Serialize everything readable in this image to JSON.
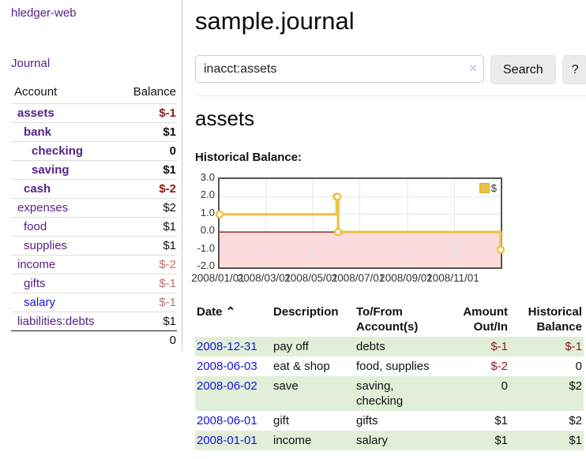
{
  "app": {
    "title": "hledger-web"
  },
  "nav": {
    "journal_label": "Journal"
  },
  "sidebar": {
    "headers": {
      "account": "Account",
      "balance": "Balance"
    },
    "accounts": [
      {
        "name": "assets",
        "level": 1,
        "balance": "$-1",
        "bold": true,
        "neg": "strong",
        "link": "visited"
      },
      {
        "name": "bank",
        "level": 2,
        "balance": "$1",
        "bold": true,
        "neg": "none",
        "link": "visited"
      },
      {
        "name": "checking",
        "level": 3,
        "balance": "0",
        "bold": true,
        "neg": "none",
        "link": "visited"
      },
      {
        "name": "saving",
        "level": 3,
        "balance": "$1",
        "bold": true,
        "neg": "none",
        "link": "visited"
      },
      {
        "name": "cash",
        "level": 2,
        "balance": "$-2",
        "bold": true,
        "neg": "strong",
        "link": "visited"
      },
      {
        "name": "expenses",
        "level": 1,
        "balance": "$2",
        "bold": false,
        "neg": "none",
        "link": "visited"
      },
      {
        "name": "food",
        "level": 2,
        "balance": "$1",
        "bold": false,
        "neg": "none",
        "link": "visited"
      },
      {
        "name": "supplies",
        "level": 2,
        "balance": "$1",
        "bold": false,
        "neg": "none",
        "link": "visited"
      },
      {
        "name": "income",
        "level": 1,
        "balance": "$-2",
        "bold": false,
        "neg": "weak",
        "link": "visited"
      },
      {
        "name": "gifts",
        "level": 2,
        "balance": "$-1",
        "bold": false,
        "neg": "weak",
        "link": "visited"
      },
      {
        "name": "salary",
        "level": 2,
        "balance": "$-1",
        "bold": false,
        "neg": "weak",
        "link": "unvisited"
      },
      {
        "name": "liabilities:debts",
        "level": 1,
        "balance": "$1",
        "bold": false,
        "neg": "none",
        "link": "visited"
      }
    ],
    "total": "0"
  },
  "main": {
    "title": "sample.journal",
    "search": {
      "value": "inacct:assets",
      "clear_icon": "×",
      "search_button": "Search",
      "help_button": "?"
    },
    "account_heading": "assets",
    "chart_label": "Historical Balance:"
  },
  "chart_data": {
    "type": "line",
    "step": true,
    "title": "Historical Balance",
    "series": [
      {
        "name": "$",
        "color": "#edc240",
        "dates": [
          "2008-01-01",
          "2008-06-01",
          "2008-06-02",
          "2008-06-03",
          "2008-12-31"
        ],
        "x_days": [
          0,
          152,
          153,
          154,
          365
        ],
        "values": [
          1,
          2,
          2,
          0,
          -1
        ]
      }
    ],
    "xlim_days": [
      0,
      365
    ],
    "ylim": [
      -2,
      3
    ],
    "yticks": [
      "3.0",
      "2.0",
      "1.0",
      "0.0",
      "-1.0",
      "-2.0"
    ],
    "xticks": [
      {
        "label": "2008/01/01",
        "day": 0
      },
      {
        "label": "2008/03/01",
        "day": 60
      },
      {
        "label": "2008/05/01",
        "day": 121
      },
      {
        "label": "2008/07/01",
        "day": 182
      },
      {
        "label": "2008/09/01",
        "day": 244
      },
      {
        "label": "2008/11/01",
        "day": 305
      }
    ],
    "legend": "$",
    "legend_position": "top-right",
    "grid": true,
    "grid_color": "#e6e6e6",
    "zero_line_color": "#8b1a1a",
    "negative_fill": "#fbdbdb",
    "marker": {
      "fill": "#ffffff",
      "radius": 4
    }
  },
  "register": {
    "headers": [
      {
        "label": "Date",
        "sort_indicator": "⌃",
        "align": "left"
      },
      {
        "label": "Description",
        "align": "left"
      },
      {
        "label": "To/From Account(s)",
        "align": "left"
      },
      {
        "label": "Amount Out/In",
        "align": "right"
      },
      {
        "label": "Historical Balance",
        "align": "right"
      }
    ],
    "rows": [
      {
        "date": "2008-12-31",
        "description": "pay off",
        "accounts": "debts",
        "amount": "$-1",
        "amount_neg": true,
        "balance": "$-1",
        "balance_neg": true,
        "green": true
      },
      {
        "date": "2008-06-03",
        "description": "eat & shop",
        "accounts": "food, supplies",
        "amount": "$-2",
        "amount_neg": true,
        "balance": "0",
        "balance_neg": false,
        "green": false
      },
      {
        "date": "2008-06-02",
        "description": "save",
        "accounts": "saving, checking",
        "amount": "0",
        "amount_neg": false,
        "balance": "$2",
        "balance_neg": false,
        "green": true
      },
      {
        "date": "2008-06-01",
        "description": "gift",
        "accounts": "gifts",
        "amount": "$1",
        "amount_neg": false,
        "balance": "$2",
        "balance_neg": false,
        "green": false
      },
      {
        "date": "2008-01-01",
        "description": "income",
        "accounts": "salary",
        "amount": "$1",
        "amount_neg": false,
        "balance": "$1",
        "balance_neg": false,
        "green": true
      }
    ]
  }
}
